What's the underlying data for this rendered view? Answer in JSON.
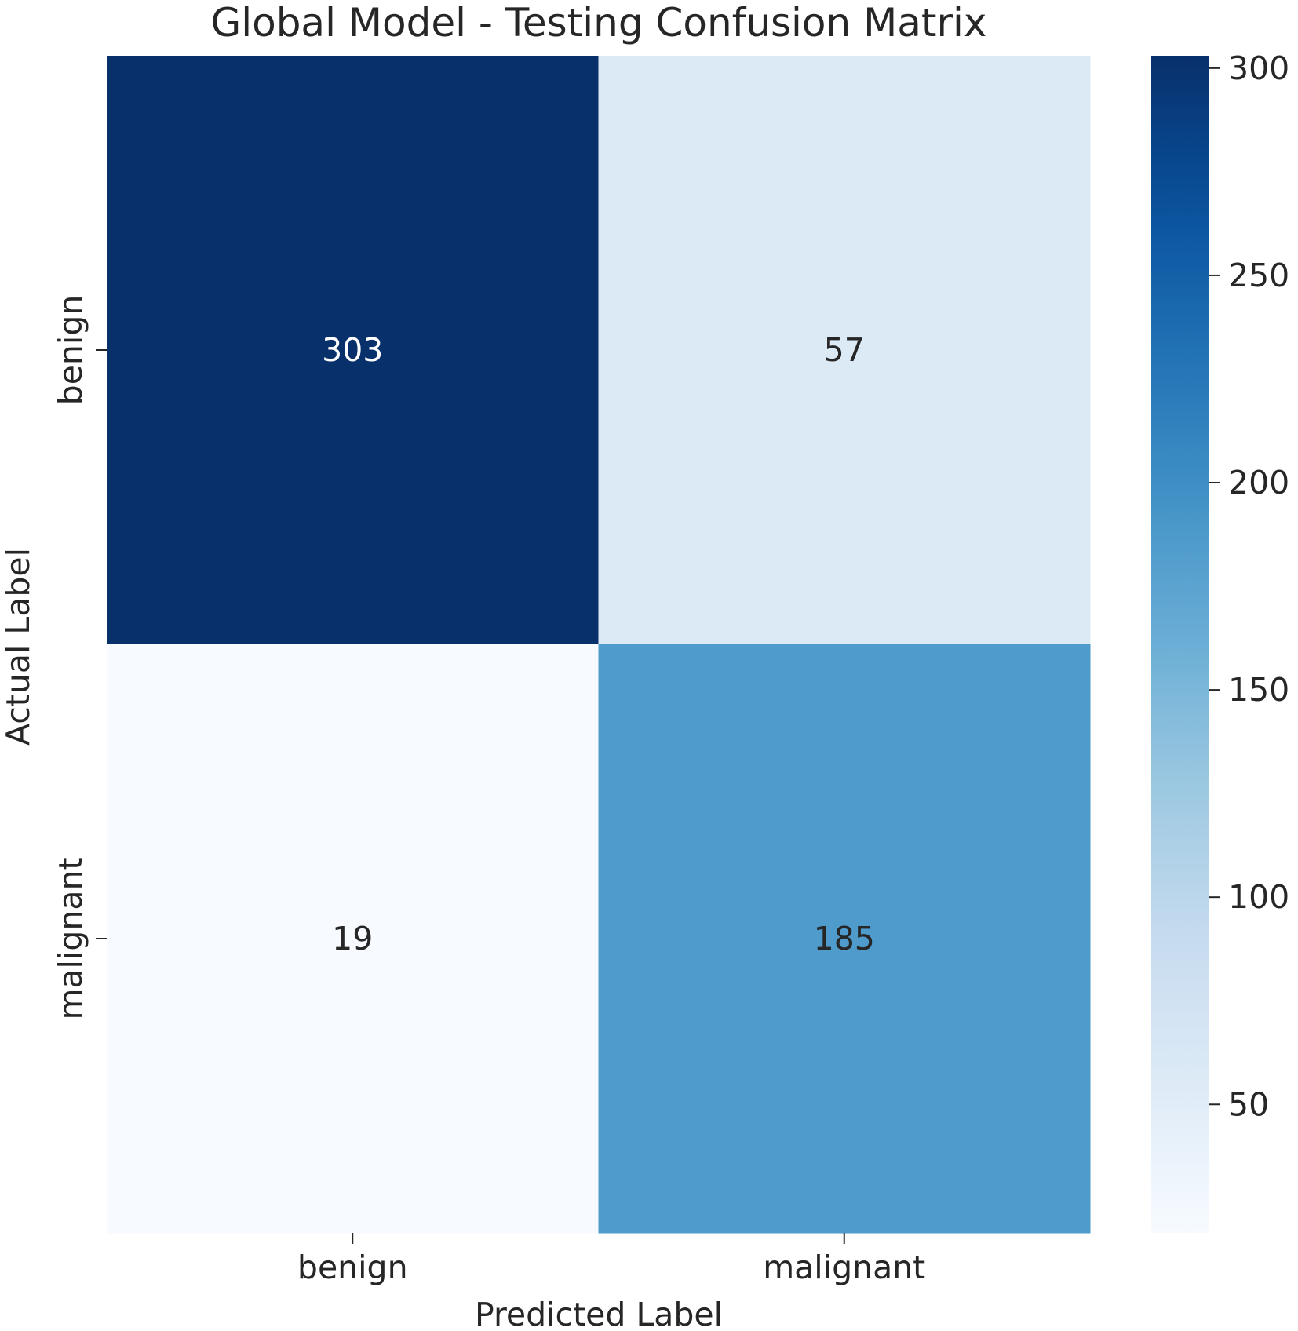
{
  "chart_data": {
    "type": "heatmap",
    "title": "Global Model - Testing Confusion Matrix",
    "xlabel": "Predicted Label",
    "ylabel": "Actual Label",
    "x_categories": [
      "benign",
      "malignant"
    ],
    "y_categories": [
      "benign",
      "malignant"
    ],
    "values": [
      [
        303,
        57
      ],
      [
        19,
        185
      ]
    ],
    "value_range": [
      19,
      303
    ],
    "colormap": "Blues",
    "colorbar": {
      "ticks": [
        50,
        100,
        150,
        200,
        250,
        300
      ],
      "tick_labels": [
        "50",
        "100",
        "150",
        "200",
        "250",
        "300"
      ]
    },
    "annotated": true,
    "grid": false
  }
}
